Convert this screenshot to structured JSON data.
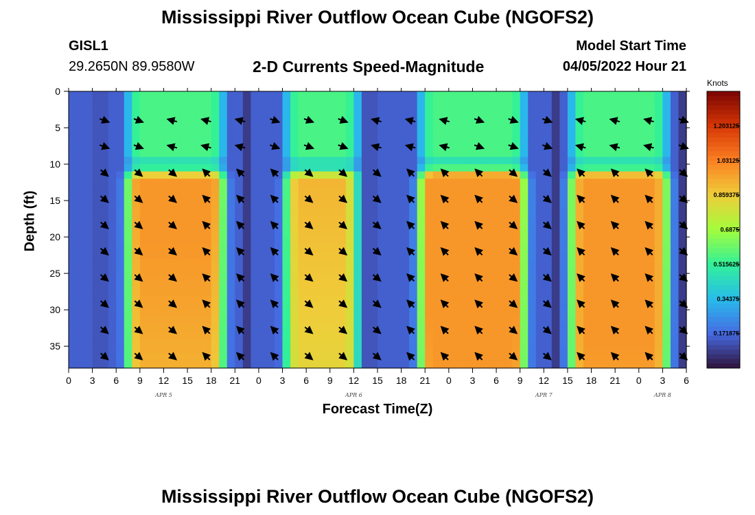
{
  "header": {
    "title": "Mississippi River Outflow Ocean Cube (NGOFS2)",
    "station": "GISL1",
    "coords": "29.2650N  89.9580W",
    "subtitle": "2-D Currents Speed-Magnitude",
    "start_label": "Model Start Time",
    "start_value": "04/05/2022 Hour 21"
  },
  "footer": {
    "title": "Mississippi River Outflow Ocean Cube (NGOFS2)"
  },
  "chart_data": {
    "type": "heatmap",
    "title": "2-D Currents Speed-Magnitude",
    "xlabel": "Forecast Time(Z)",
    "ylabel": "Depth (ft)",
    "x_ticks": [
      "0",
      "3",
      "6",
      "9",
      "12",
      "15",
      "18",
      "21",
      "0",
      "3",
      "6",
      "9",
      "12",
      "15",
      "18",
      "21",
      "0",
      "3",
      "6",
      "9",
      "12",
      "15",
      "18",
      "21",
      "0",
      "3",
      "6"
    ],
    "x_range_hours": [
      0,
      78
    ],
    "date_labels": [
      {
        "text": "APR 5",
        "hour": 12
      },
      {
        "text": "APR 6",
        "hour": 36
      },
      {
        "text": "APR 7",
        "hour": 60
      },
      {
        "text": "APR 8",
        "hour": 75
      }
    ],
    "y_ticks": [
      "0",
      "5",
      "10",
      "15",
      "20",
      "25",
      "30",
      "35"
    ],
    "y_range_ft": [
      0,
      38
    ],
    "colorbar": {
      "units": "Knots",
      "labels": [
        "1.203125",
        "1.03125",
        "0.859375",
        "0.6875",
        "0.515625",
        "0.34375",
        "0.171875"
      ],
      "min": 0,
      "max": 1.375
    },
    "high_speed_zones": [
      {
        "start_hour": 7,
        "end_hour": 20,
        "peak_knots": 1.05
      },
      {
        "start_hour": 27,
        "end_hour": 37,
        "peak_knots": 0.95
      },
      {
        "start_hour": 44,
        "end_hour": 58,
        "peak_knots": 1.15
      },
      {
        "start_hour": 63,
        "end_hour": 76,
        "peak_knots": 1.1
      }
    ]
  },
  "colors": {
    "low": "#30123b",
    "mid": "#46f884",
    "high": "#7a0403",
    "arrow": "#000000"
  }
}
